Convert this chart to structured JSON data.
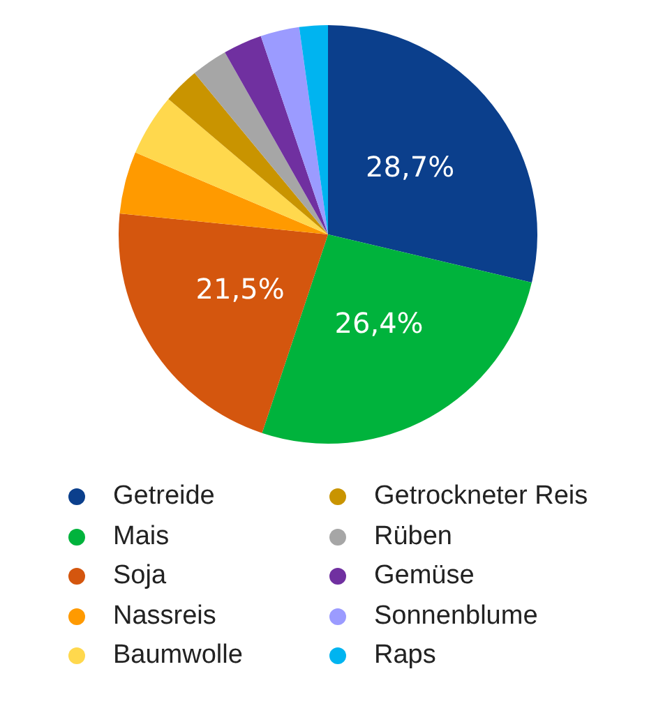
{
  "chart_data": {
    "type": "pie",
    "categories": [
      "Getreide",
      "Mais",
      "Soja",
      "Nassreis",
      "Baumwolle",
      "Getrockneter Reis",
      "Rüben",
      "Gemüse",
      "Sonnenblume",
      "Raps"
    ],
    "values": [
      28.7,
      26.4,
      21.5,
      4.8,
      4.8,
      2.8,
      2.8,
      3.0,
      3.0,
      2.2
    ],
    "value_labels": [
      "28,7%",
      "26,4%",
      "21,5%",
      null,
      null,
      null,
      null,
      null,
      null,
      null
    ],
    "colors": [
      "#0b3f8c",
      "#00b33c",
      "#d4560e",
      "#ff9a00",
      "#ffd84d",
      "#c99400",
      "#a6a6a6",
      "#7030a0",
      "#9b9bff",
      "#00b4f0"
    ],
    "legend": "bottom"
  }
}
